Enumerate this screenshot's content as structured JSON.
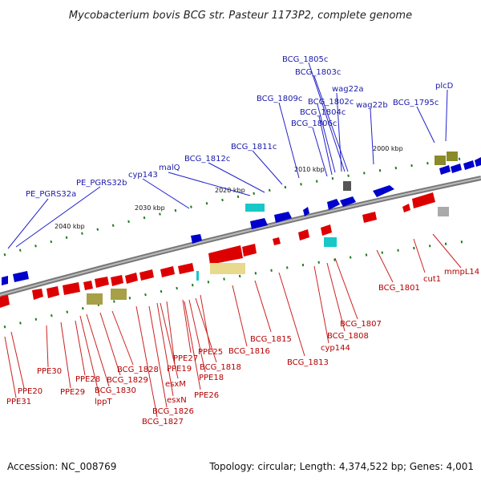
{
  "title": "Mycobacterium bovis BCG str. Pasteur 1173P2, complete genome",
  "accession": "Accession: NC_008769",
  "topology": "Topology: circular; Length: 4,374,522 bp; Genes: 4,001",
  "colors": {
    "forward": "#0000cc",
    "reverse": "#dd0000",
    "olive": "#a7a047",
    "cyan": "#19c7c7",
    "khaki": "#e8d98c",
    "gray": "#777777",
    "tick": "#1f7a1f",
    "backbone": "#888888"
  },
  "kbp_labels": [
    "2000 kbp",
    "2010 kbp",
    "2020 kbp",
    "2030 kbp",
    "2040 kbp"
  ],
  "blue_labels": [
    "BCG_1805c",
    "BCG_1803c",
    "wag22a",
    "BCG_1802c",
    "plcD",
    "BCG_1809c",
    "BCG_1804c",
    "wag22b",
    "BCG_1795c",
    "BCG_1806c",
    "BCG_1811c",
    "BCG_1812c",
    "malQ",
    "cyp143",
    "PE_PGRS32b",
    "PE_PGRS32a"
  ],
  "red_labels": [
    "mmpL14",
    "cut1",
    "BCG_1801",
    "BCG_1807",
    "BCG_1808",
    "cyp144",
    "BCG_1813",
    "BCG_1815",
    "BCG_1816",
    "PPE25",
    "BCG_1818",
    "PPE18",
    "PPE27",
    "PPE19",
    "PPE26",
    "esxM",
    "esxN",
    "BCG_1826",
    "BCG_1827",
    "BCG_1828",
    "BCG_1829",
    "BCG_1830",
    "lppT",
    "PPE28",
    "PPE29",
    "PPE30",
    "PPE20",
    "PPE31"
  ]
}
